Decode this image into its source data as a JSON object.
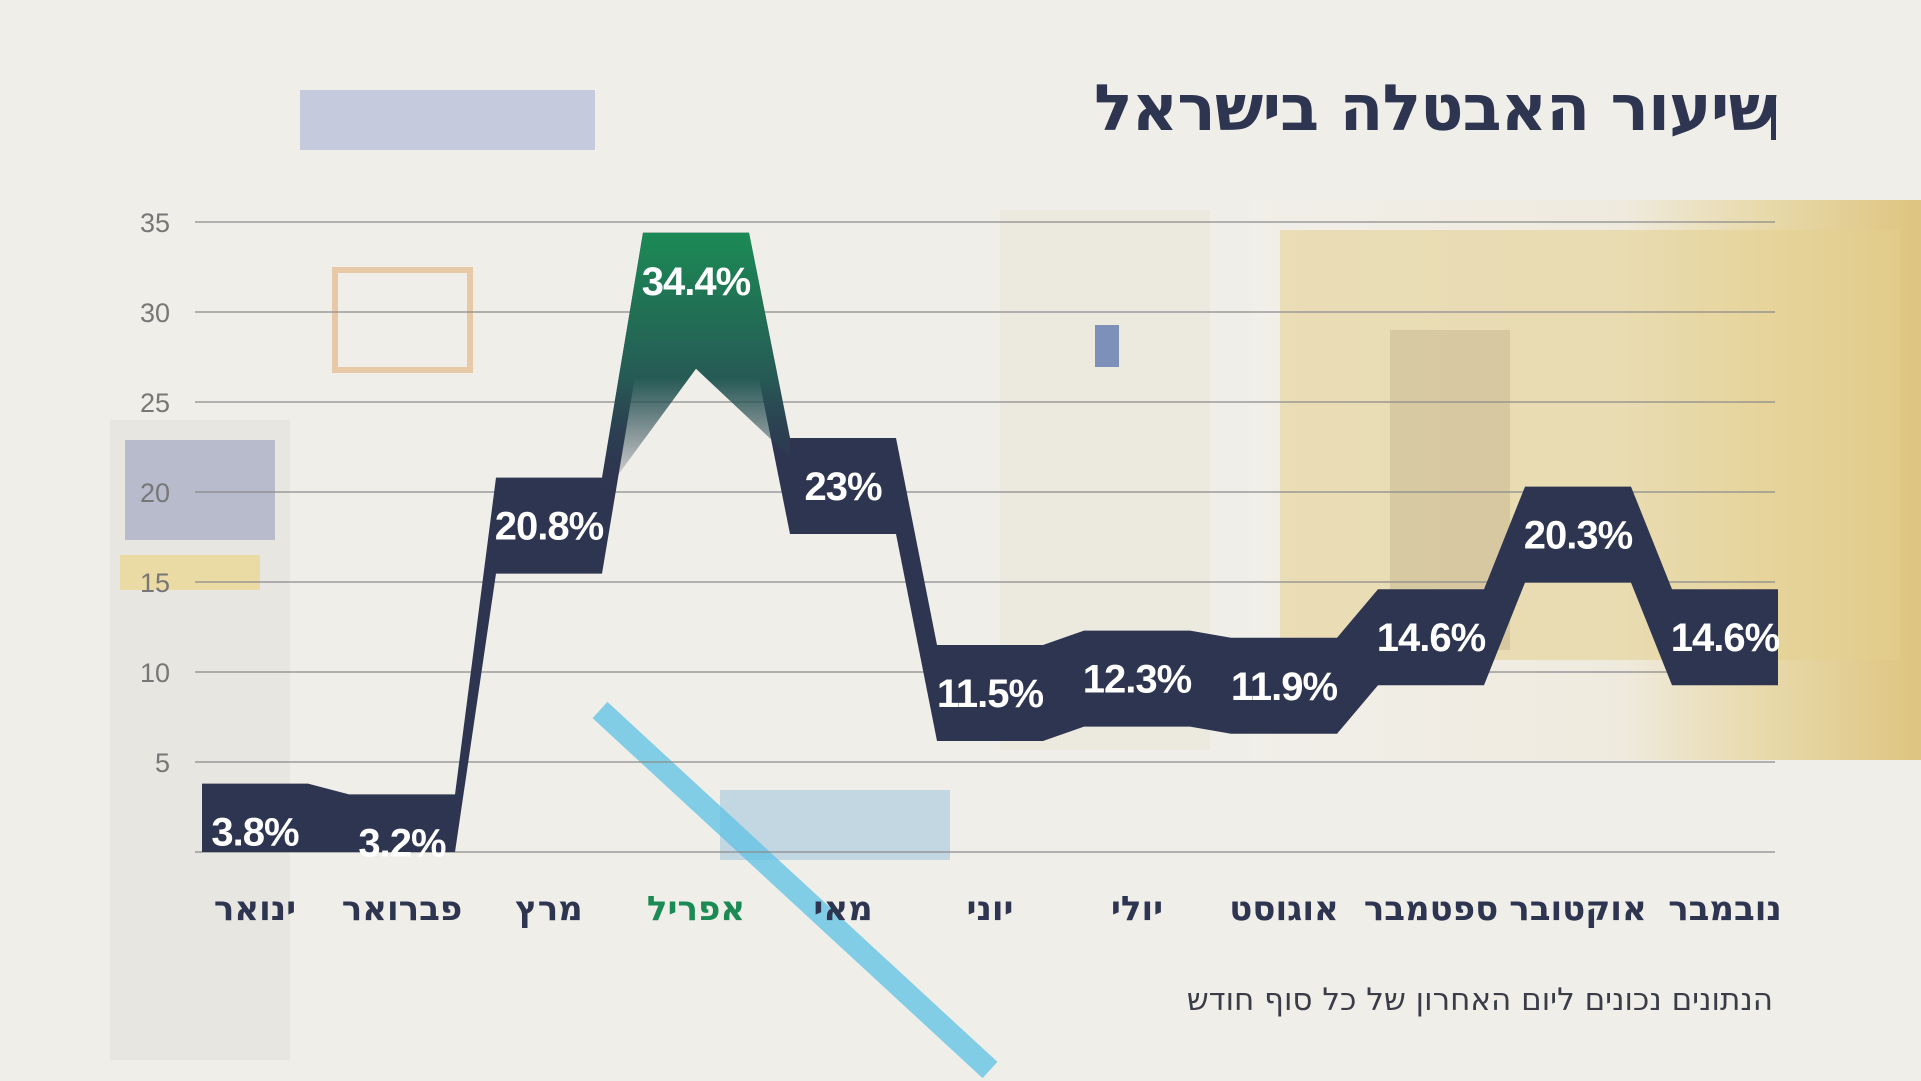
{
  "title": "שיעור האבטלה בישראל",
  "footnote": "הנתונים נכונים ליום האחרון של כל סוף חודש",
  "colors": {
    "band": "#2e3550",
    "highlight": "#1b8a55",
    "grid": "#8a8a8a",
    "axis_text": "#777777",
    "label_text": "#ffffff"
  },
  "chart_data": {
    "type": "line",
    "title": "שיעור האבטלה בישראל",
    "categories": [
      "ינואר",
      "פברואר",
      "מרץ",
      "אפריל",
      "מאי",
      "יוני",
      "יולי",
      "אוגוסט",
      "ספטמבר",
      "אוקטובר",
      "נובמבר"
    ],
    "values": [
      3.8,
      3.2,
      20.8,
      34.4,
      23,
      11.5,
      12.3,
      11.9,
      14.6,
      20.3,
      14.6
    ],
    "data_labels": [
      "3.8%",
      "3.2%",
      "20.8%",
      "34.4%",
      "23%",
      "11.5%",
      "12.3%",
      "11.9%",
      "14.6%",
      "20.3%",
      "14.6%"
    ],
    "highlight_index": 3,
    "y_ticks": [
      "5",
      "10",
      "15",
      "20",
      "25",
      "30",
      "35"
    ],
    "ylim": [
      0,
      35
    ],
    "grid": true,
    "legend": "none"
  }
}
